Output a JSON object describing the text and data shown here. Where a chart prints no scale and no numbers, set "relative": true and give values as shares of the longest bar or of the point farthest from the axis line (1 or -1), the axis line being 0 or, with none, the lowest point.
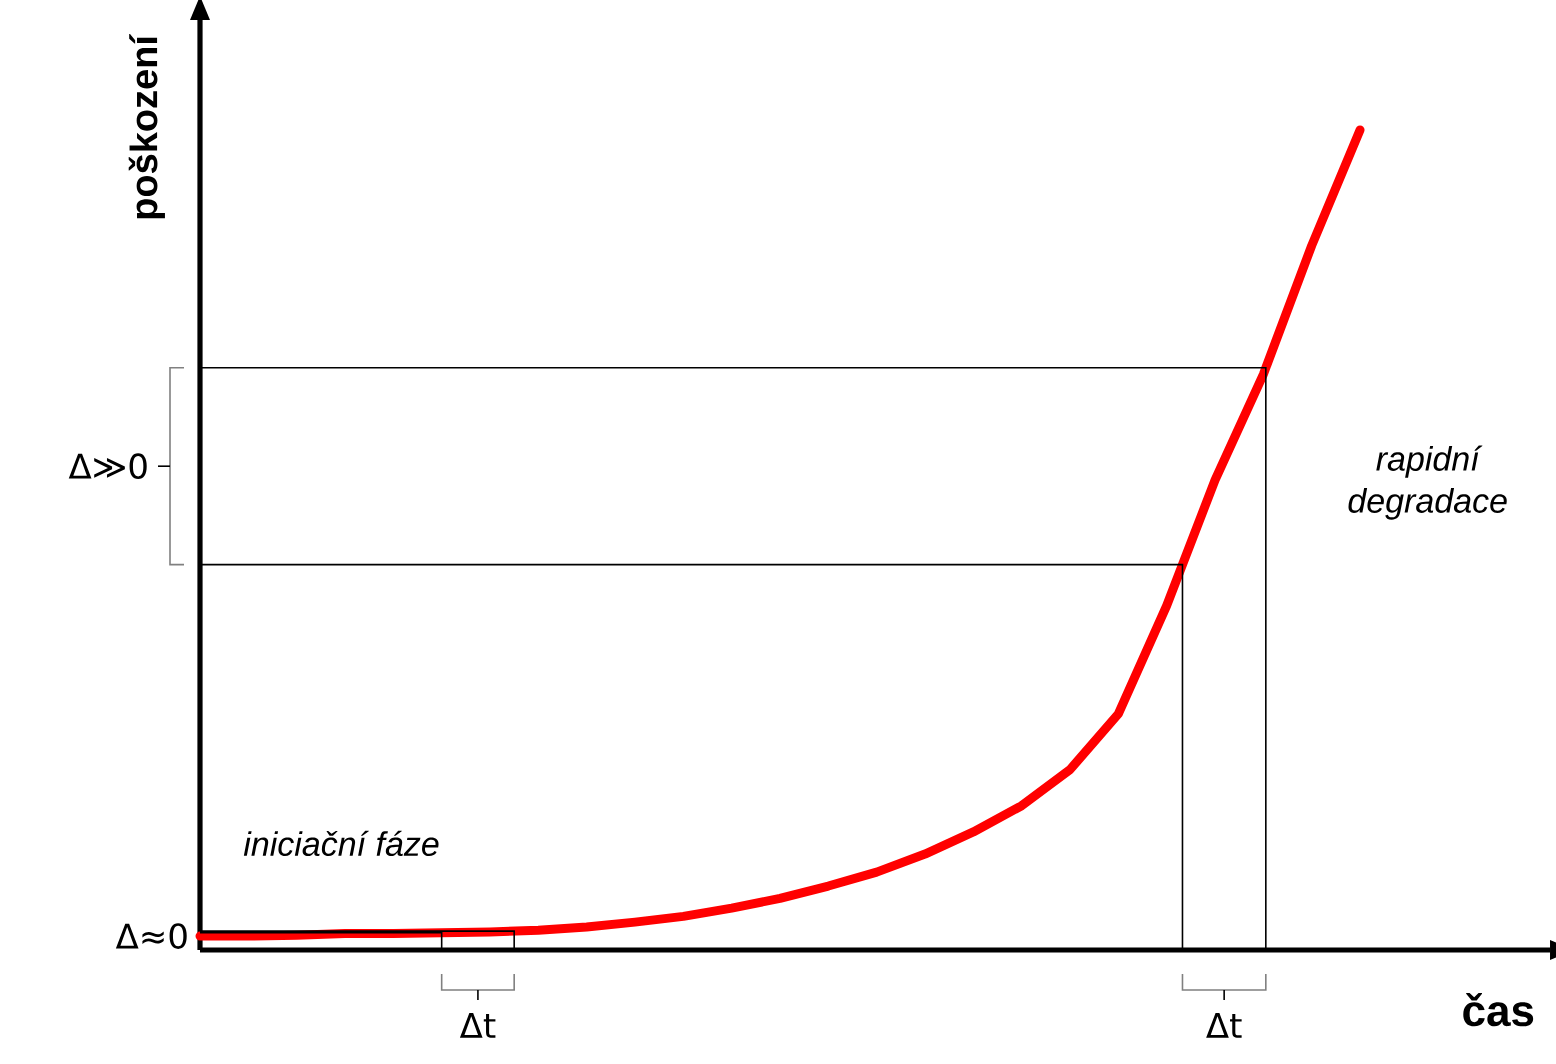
{
  "chart_data": {
    "type": "line",
    "relative": true,
    "xlabel": "čas",
    "ylabel": "poškození",
    "categories": [
      null,
      null,
      null,
      null,
      null,
      null,
      null,
      null,
      null,
      null,
      null,
      null,
      null,
      null,
      null,
      null,
      null,
      null,
      null,
      null,
      null,
      null,
      null,
      null,
      null
    ],
    "series": [
      {
        "color": "#ff0000",
        "values": [
          0.017,
          0.017,
          0.018,
          0.02,
          0.02,
          0.021,
          0.022,
          0.024,
          0.028,
          0.034,
          0.041,
          0.051,
          0.063,
          0.078,
          0.095,
          0.117,
          0.144,
          0.176,
          0.22,
          0.288,
          0.42,
          0.573,
          0.702,
          0.859,
          1
        ]
      }
    ],
    "ref_lines": [
      {
        "axis": "y",
        "value": 0.021,
        "color": "#000000"
      },
      {
        "axis": "y",
        "value": 0.023,
        "color": "#000000"
      },
      {
        "axis": "y",
        "value": 0.47,
        "color": "#000000"
      },
      {
        "axis": "y",
        "value": 0.71,
        "color": "#000000"
      }
    ],
    "annotations": [
      "iniciační fáze",
      "rapidní degradace",
      "Δ≫0",
      "Δ≈0",
      "Δt",
      "Δt"
    ],
    "marker": "none",
    "line_style": "solid"
  }
}
